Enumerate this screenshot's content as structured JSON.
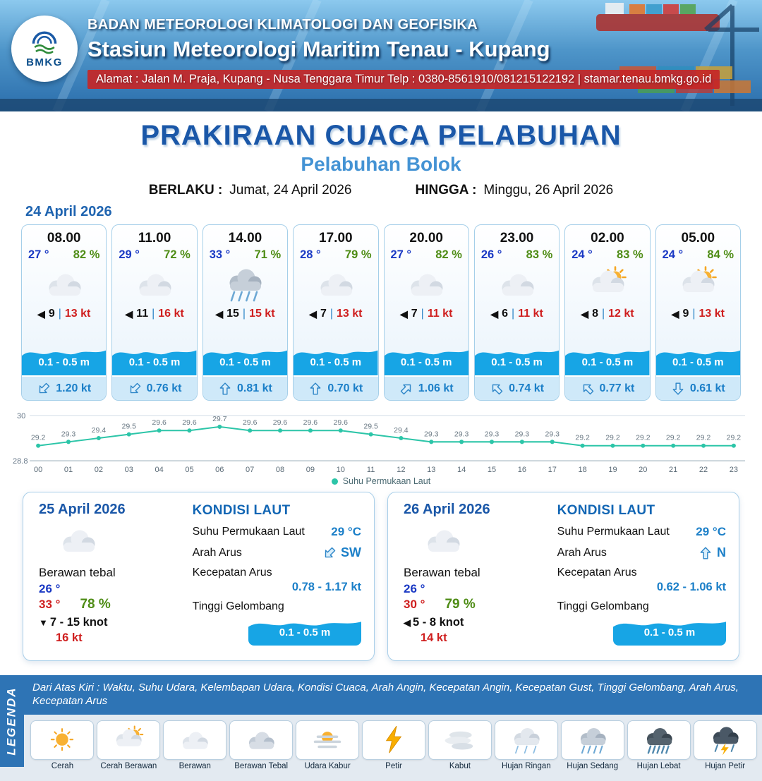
{
  "header": {
    "logo_text": "BMKG",
    "agency": "BADAN METEOROLOGI KLIMATOLOGI DAN GEOFISIKA",
    "station": "Stasiun Meteorologi Maritim Tenau - Kupang",
    "address": "Alamat : Jalan M. Praja, Kupang - Nusa Tenggara Timur Telp : 0380-8561910/081215122192  | stamar.tenau.bmkg.go.id"
  },
  "title": {
    "main": "PRAKIRAAN CUACA PELABUHAN",
    "subtitle": "Pelabuhan Bolok",
    "valid_from_label": "BERLAKU :",
    "valid_from": "Jumat, 24 April 2026",
    "valid_to_label": "HINGGA :",
    "valid_to": "Minggu, 26 April 2026"
  },
  "hourly": {
    "date": "24 April 2026",
    "cards": [
      {
        "time": "08.00",
        "temp": "27 °",
        "humidity": "82 %",
        "icon": "cloud",
        "wind_arrow": "◀",
        "wind": "9",
        "gust": "13 kt",
        "wave": "0.1 - 0.5 m",
        "current": "1.20 kt",
        "current_deg": 225
      },
      {
        "time": "11.00",
        "temp": "29 °",
        "humidity": "72 %",
        "icon": "cloud",
        "wind_arrow": "◀",
        "wind": "11",
        "gust": "16 kt",
        "wave": "0.1 - 0.5 m",
        "current": "0.76 kt",
        "current_deg": 225
      },
      {
        "time": "14.00",
        "temp": "33 °",
        "humidity": "71 %",
        "icon": "rain-mid",
        "wind_arrow": "◀",
        "wind": "15",
        "gust": "15 kt",
        "wave": "0.1 - 0.5 m",
        "current": "0.81 kt",
        "current_deg": 0
      },
      {
        "time": "17.00",
        "temp": "28 °",
        "humidity": "79 %",
        "icon": "cloud",
        "wind_arrow": "◀",
        "wind": "7",
        "gust": "13 kt",
        "wave": "0.1 - 0.5 m",
        "current": "0.70 kt",
        "current_deg": 0
      },
      {
        "time": "20.00",
        "temp": "27 °",
        "humidity": "82 %",
        "icon": "cloud",
        "wind_arrow": "◀",
        "wind": "7",
        "gust": "11 kt",
        "wave": "0.1 - 0.5 m",
        "current": "1.06 kt",
        "current_deg": 45
      },
      {
        "time": "23.00",
        "temp": "26 °",
        "humidity": "83 %",
        "icon": "cloud",
        "wind_arrow": "◀",
        "wind": "6",
        "gust": "11 kt",
        "wave": "0.1 - 0.5 m",
        "current": "0.74 kt",
        "current_deg": 315
      },
      {
        "time": "02.00",
        "temp": "24 °",
        "humidity": "83 %",
        "icon": "sun-cloud",
        "wind_arrow": "◀",
        "wind": "8",
        "gust": "12 kt",
        "wave": "0.1 - 0.5 m",
        "current": "0.77 kt",
        "current_deg": 315
      },
      {
        "time": "05.00",
        "temp": "24 °",
        "humidity": "84 %",
        "icon": "sun-cloud",
        "wind_arrow": "◀",
        "wind": "9",
        "gust": "13 kt",
        "wave": "0.1 - 0.5 m",
        "current": "0.61 kt",
        "current_deg": 180
      }
    ]
  },
  "chart_data": {
    "type": "line",
    "series_name": "Suhu Permukaan Laut",
    "x": [
      "00",
      "01",
      "02",
      "03",
      "04",
      "05",
      "06",
      "07",
      "08",
      "09",
      "10",
      "11",
      "12",
      "13",
      "14",
      "15",
      "16",
      "17",
      "18",
      "19",
      "20",
      "21",
      "22",
      "23"
    ],
    "values": [
      29.2,
      29.3,
      29.4,
      29.5,
      29.6,
      29.6,
      29.7,
      29.6,
      29.6,
      29.6,
      29.6,
      29.5,
      29.4,
      29.3,
      29.3,
      29.3,
      29.3,
      29.3,
      29.2,
      29.2,
      29.2,
      29.2,
      29.2,
      29.2
    ],
    "ylim": [
      28.8,
      30
    ],
    "y_ticks": [
      "30",
      "28.8"
    ],
    "grid": true,
    "legend_position": "bottom",
    "line_color": "#2cc5a8"
  },
  "daily": [
    {
      "date": "25 April 2026",
      "icon": "cloud",
      "condition": "Berawan tebal",
      "temp_min": "26 °",
      "temp_max": "33 °",
      "humidity": "78 %",
      "wind_arrow": "▼",
      "wind": "7  - 15 knot",
      "gust": "16 kt",
      "sea_title": "KONDISI LAUT",
      "sst_label": "Suhu Permukaan Laut",
      "sst": "29 °C",
      "current_dir_label": "Arah Arus",
      "current_dir": "SW",
      "current_dir_deg": 225,
      "current_speed_label": "Kecepatan Arus",
      "current_speed": "0.78 - 1.17 kt",
      "wave_label": "Tinggi Gelombang",
      "wave": "0.1 - 0.5 m"
    },
    {
      "date": "26 April 2026",
      "icon": "cloud",
      "condition": "Berawan tebal",
      "temp_min": "26 °",
      "temp_max": "30 °",
      "humidity": "79 %",
      "wind_arrow": "◀",
      "wind": "5  - 8 knot",
      "gust": "14 kt",
      "sea_title": "KONDISI LAUT",
      "sst_label": "Suhu Permukaan Laut",
      "sst": "29 °C",
      "current_dir_label": "Arah Arus",
      "current_dir": "N",
      "current_dir_deg": 0,
      "current_speed_label": "Kecepatan Arus",
      "current_speed": "0.62 - 1.06 kt",
      "wave_label": "Tinggi Gelombang",
      "wave": "0.1 - 0.5 m"
    }
  ],
  "legend": {
    "note": "Dari Atas Kiri : Waktu, Suhu Udara, Kelembapan Udara, Kondisi Cuaca, Arah Angin, Kecepatan Angin, Kecepatan Gust, Tinggi Gelombang, Arah Arus, Kecepatan Arus",
    "side_label": "LEGENDA",
    "items": [
      {
        "label": "Cerah",
        "icon": "sun"
      },
      {
        "label": "Cerah Berawan",
        "icon": "sun-cloud"
      },
      {
        "label": "Berawan",
        "icon": "cloud"
      },
      {
        "label": "Berawan Tebal",
        "icon": "cloud-thick"
      },
      {
        "label": "Udara Kabur",
        "icon": "haze"
      },
      {
        "label": "Petir",
        "icon": "bolt"
      },
      {
        "label": "Kabut",
        "icon": "fog"
      },
      {
        "label": "Hujan Ringan",
        "icon": "rain-light"
      },
      {
        "label": "Hujan Sedang",
        "icon": "rain-mid"
      },
      {
        "label": "Hujan Lebat",
        "icon": "rain-heavy"
      },
      {
        "label": "Hujan Petir",
        "icon": "storm"
      }
    ]
  }
}
